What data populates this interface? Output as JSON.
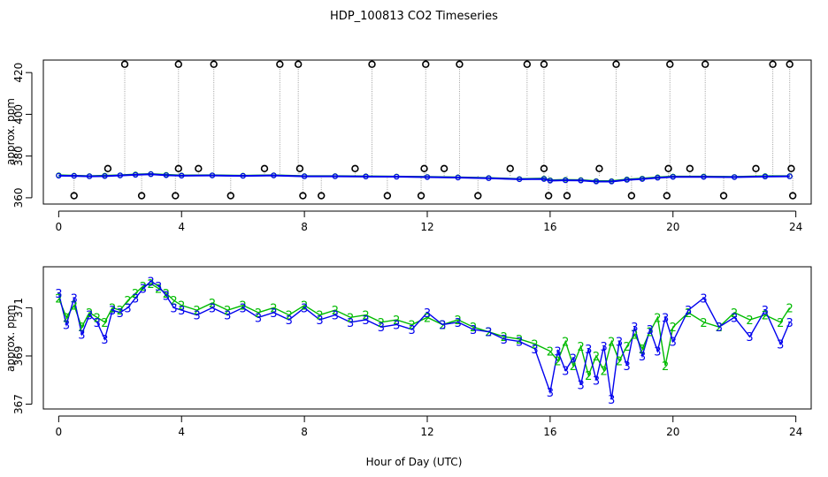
{
  "title": "HDP_100813  CO2 Timeseries",
  "xlabel": "Hour of Day (UTC)",
  "colors": {
    "series2": "#00bb00",
    "series3": "#0000ee",
    "marker": "#000000",
    "drop": "#9a9a9a",
    "cyan": "#00bbbb"
  },
  "chart_data": [
    {
      "type": "line",
      "name": "top",
      "ylabel": "approx. ppm",
      "xlim": [
        -0.5,
        24.5
      ],
      "ylim": [
        357,
        426
      ],
      "xticks": [
        0,
        4,
        8,
        12,
        16,
        20,
        24
      ],
      "xtick_labels": [
        "0",
        "4",
        "8",
        "12",
        "16",
        "20",
        "24"
      ],
      "yticks": [
        360,
        380,
        400,
        420
      ],
      "ytick_labels": [
        "360",
        "380",
        "400",
        "420"
      ],
      "series": [
        {
          "name": "2",
          "color": "#00bb00",
          "x": [
            0.0,
            0.5,
            1.0,
            1.5,
            2.0,
            2.5,
            3.0,
            3.5,
            4.0,
            5.0,
            6.0,
            7.0,
            8.0,
            9.0,
            10.0,
            11.0,
            12.0,
            13.0,
            14.0,
            15.0,
            15.8,
            16.0,
            16.5,
            17.0,
            17.5,
            18.0,
            18.5,
            19.0,
            19.5,
            20.0,
            21.0,
            22.0,
            23.0,
            23.8
          ],
          "y": [
            370.8,
            370.6,
            370.4,
            370.6,
            370.8,
            371.2,
            371.4,
            371.0,
            370.7,
            370.8,
            370.6,
            370.8,
            370.4,
            370.4,
            370.3,
            370.2,
            370.0,
            369.8,
            369.5,
            369.0,
            369.2,
            368.4,
            368.6,
            368.5,
            368.0,
            368.0,
            368.8,
            369.2,
            369.8,
            370.2,
            370.2,
            370.0,
            370.4,
            370.4
          ]
        },
        {
          "name": "3",
          "color": "#0000ee",
          "x": [
            0.0,
            0.5,
            1.0,
            1.5,
            2.0,
            2.5,
            3.0,
            3.5,
            4.0,
            5.0,
            6.0,
            7.0,
            8.0,
            9.0,
            10.0,
            11.0,
            12.0,
            13.0,
            14.0,
            15.0,
            15.8,
            16.0,
            16.5,
            17.0,
            17.5,
            18.0,
            18.5,
            19.0,
            19.5,
            20.0,
            21.0,
            22.0,
            23.0,
            23.8
          ],
          "y": [
            370.6,
            370.5,
            370.3,
            370.4,
            370.7,
            371.0,
            371.3,
            370.8,
            370.6,
            370.7,
            370.5,
            370.7,
            370.3,
            370.3,
            370.2,
            370.1,
            369.9,
            369.7,
            369.4,
            368.9,
            369.0,
            368.2,
            368.4,
            368.3,
            367.8,
            367.8,
            368.6,
            369.0,
            369.6,
            370.0,
            370.0,
            369.9,
            370.2,
            370.3
          ]
        }
      ],
      "flags": {
        "high_value": 424,
        "mid_value": 374,
        "low_value": 361,
        "high_x": [
          2.15,
          3.9,
          5.05,
          7.2,
          7.8,
          10.2,
          11.95,
          13.05,
          15.25,
          15.8,
          18.15,
          19.9,
          21.05,
          23.25,
          23.8
        ],
        "mid_x": [
          1.6,
          3.9,
          4.55,
          6.7,
          7.85,
          9.65,
          11.9,
          12.55,
          14.7,
          15.8,
          17.6,
          19.85,
          20.55,
          22.7,
          23.85
        ],
        "low_x": [
          0.5,
          2.7,
          3.8,
          5.6,
          7.95,
          8.55,
          10.7,
          11.8,
          13.65,
          15.95,
          16.55,
          18.65,
          19.8,
          21.65,
          23.9
        ]
      }
    },
    {
      "type": "line",
      "name": "bottom",
      "ylabel": "approx. ppm",
      "xlim": [
        -0.5,
        24.5
      ],
      "ylim": [
        366.8,
        372.7
      ],
      "xticks": [
        0,
        4,
        8,
        12,
        16,
        20,
        24
      ],
      "xtick_labels": [
        "0",
        "4",
        "8",
        "12",
        "16",
        "20",
        "24"
      ],
      "yticks": [
        367,
        369,
        371
      ],
      "ytick_labels": [
        "367",
        "369",
        "371"
      ],
      "series": [
        {
          "name": "2",
          "label": "2",
          "color": "#00bb00",
          "x": [
            0.0,
            0.25,
            0.5,
            0.75,
            1.0,
            1.25,
            1.5,
            1.75,
            2.0,
            2.25,
            2.5,
            2.75,
            3.0,
            3.25,
            3.5,
            3.75,
            4.0,
            4.5,
            5.0,
            5.5,
            6.0,
            6.5,
            7.0,
            7.5,
            8.0,
            8.5,
            9.0,
            9.5,
            10.0,
            10.5,
            11.0,
            11.5,
            12.0,
            12.5,
            13.0,
            13.5,
            14.0,
            14.5,
            15.0,
            15.5,
            16.0,
            16.25,
            16.5,
            16.75,
            17.0,
            17.25,
            17.5,
            17.75,
            18.0,
            18.25,
            18.5,
            18.75,
            19.0,
            19.25,
            19.5,
            19.75,
            20.0,
            20.5,
            21.0,
            21.5,
            22.0,
            22.5,
            23.0,
            23.5,
            23.8
          ],
          "y": [
            371.4,
            370.6,
            371.1,
            370.2,
            370.8,
            370.6,
            370.4,
            371.0,
            370.9,
            371.3,
            371.6,
            371.9,
            372.0,
            371.8,
            371.6,
            371.3,
            371.1,
            370.9,
            371.2,
            370.9,
            371.1,
            370.8,
            371.0,
            370.7,
            371.1,
            370.7,
            370.9,
            370.6,
            370.7,
            370.4,
            370.5,
            370.3,
            370.6,
            370.3,
            370.5,
            370.2,
            370.0,
            369.8,
            369.7,
            369.5,
            369.2,
            368.8,
            369.6,
            368.6,
            369.4,
            368.2,
            369.0,
            368.4,
            369.6,
            368.8,
            369.4,
            369.9,
            369.3,
            370.0,
            370.6,
            368.6,
            370.2,
            370.8,
            370.4,
            370.2,
            370.8,
            370.5,
            370.7,
            370.4,
            371.0
          ]
        },
        {
          "name": "3",
          "label": "3",
          "color": "#0000ee",
          "x": [
            0.0,
            0.25,
            0.5,
            0.75,
            1.0,
            1.25,
            1.5,
            1.75,
            2.0,
            2.25,
            2.5,
            2.75,
            3.0,
            3.25,
            3.5,
            3.75,
            4.0,
            4.5,
            5.0,
            5.5,
            6.0,
            6.5,
            7.0,
            7.5,
            8.0,
            8.5,
            9.0,
            9.5,
            10.0,
            10.5,
            11.0,
            11.5,
            12.0,
            12.5,
            13.0,
            13.5,
            14.0,
            14.5,
            15.0,
            15.5,
            16.0,
            16.25,
            16.5,
            16.75,
            17.0,
            17.25,
            17.5,
            17.75,
            18.0,
            18.25,
            18.5,
            18.75,
            19.0,
            19.25,
            19.5,
            19.75,
            20.0,
            20.5,
            21.0,
            21.5,
            22.0,
            22.5,
            23.0,
            23.5,
            23.8
          ],
          "y": [
            371.6,
            370.3,
            371.4,
            369.9,
            370.7,
            370.4,
            369.7,
            370.9,
            370.8,
            371.0,
            371.4,
            371.8,
            372.1,
            371.9,
            371.5,
            371.0,
            370.9,
            370.7,
            371.0,
            370.7,
            371.0,
            370.6,
            370.8,
            370.5,
            371.0,
            370.5,
            370.7,
            370.4,
            370.5,
            370.2,
            370.3,
            370.1,
            370.8,
            370.3,
            370.4,
            370.1,
            370.0,
            369.7,
            369.6,
            369.3,
            367.5,
            369.2,
            368.4,
            368.9,
            367.8,
            369.3,
            368.0,
            369.4,
            367.2,
            369.6,
            368.6,
            370.2,
            369.0,
            370.1,
            369.2,
            370.6,
            369.6,
            370.9,
            371.4,
            370.2,
            370.6,
            369.8,
            370.9,
            369.5,
            370.4
          ]
        }
      ]
    }
  ]
}
